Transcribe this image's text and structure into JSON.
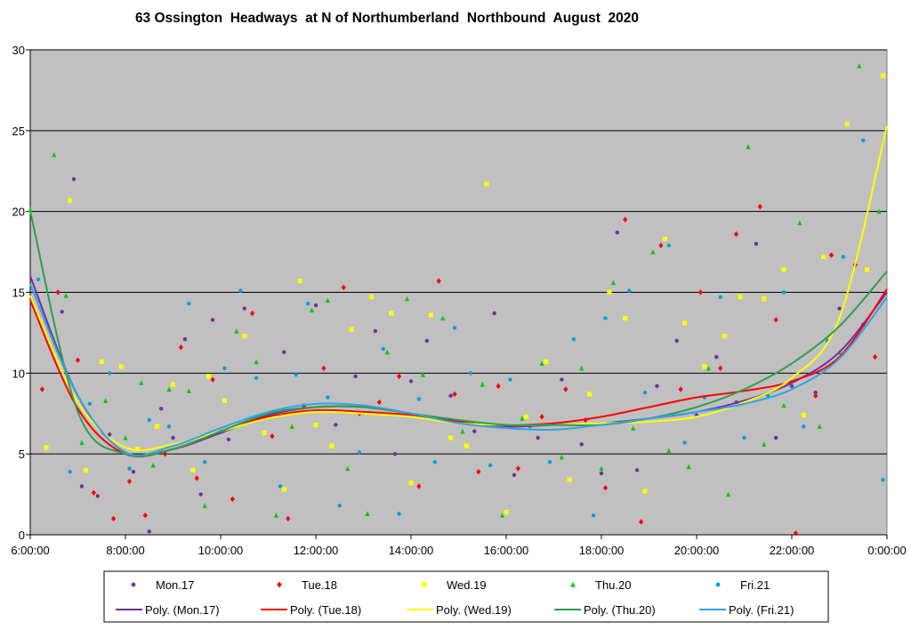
{
  "chart_data": {
    "type": "scatter",
    "title": "63 Ossington  Headways  at N of Northumberland  Northbound  August  2020",
    "xlabel": "",
    "ylabel": "",
    "xlim": [
      "6:00:00",
      "0:00:00"
    ],
    "ylim": [
      0,
      30
    ],
    "x_ticks": [
      "6:00:00",
      "8:00:00",
      "10:00:00",
      "12:00:00",
      "14:00:00",
      "16:00:00",
      "18:00:00",
      "20:00:00",
      "22:00:00",
      "0:00:00"
    ],
    "y_ticks": [
      "0",
      "5",
      "10",
      "15",
      "20",
      "25",
      "30"
    ],
    "grid": "horizontal",
    "plot_background": "#C0C0C0",
    "legend_position": "bottom",
    "series": [
      {
        "name": "Mon.17",
        "color": "#7030A0",
        "marker": "circle",
        "x": [
          "6:40",
          "6:55",
          "7:05",
          "7:25",
          "7:40",
          "8:10",
          "8:30",
          "8:45",
          "9:00",
          "9:15",
          "9:35",
          "9:50",
          "10:10",
          "10:30",
          "10:55",
          "11:20",
          "11:45",
          "12:00",
          "12:25",
          "12:50",
          "13:15",
          "13:40",
          "14:00",
          "14:20",
          "14:50",
          "15:20",
          "15:45",
          "16:10",
          "16:40",
          "17:10",
          "17:35",
          "18:00",
          "18:20",
          "18:45",
          "19:10",
          "19:35",
          "20:00",
          "20:25",
          "20:50",
          "21:15",
          "21:40",
          "22:00",
          "22:30",
          "23:00",
          "23:30"
        ],
        "y": [
          13.8,
          22.0,
          3.0,
          2.4,
          6.2,
          3.9,
          0.2,
          7.8,
          6.0,
          12.1,
          2.5,
          13.3,
          5.9,
          14.0,
          7.2,
          11.3,
          8.0,
          14.2,
          6.8,
          9.8,
          12.6,
          5.0,
          9.5,
          12.0,
          8.6,
          6.4,
          13.7,
          3.7,
          6.0,
          9.6,
          5.6,
          3.8,
          18.7,
          4.0,
          9.2,
          12.0,
          7.4,
          11.0,
          8.2,
          18.0,
          6.0,
          9.2,
          8.8,
          14.0,
          13.0
        ]
      },
      {
        "name": "Tue.18",
        "color": "#FF0000",
        "marker": "diamond",
        "x": [
          "6:15",
          "6:35",
          "7:00",
          "7:20",
          "7:45",
          "8:05",
          "8:25",
          "8:50",
          "9:10",
          "9:30",
          "9:50",
          "10:15",
          "10:40",
          "11:05",
          "11:25",
          "11:45",
          "12:10",
          "12:35",
          "12:55",
          "13:20",
          "13:45",
          "14:10",
          "14:35",
          "14:55",
          "15:25",
          "15:50",
          "16:15",
          "16:45",
          "17:15",
          "17:40",
          "18:05",
          "18:30",
          "18:50",
          "19:15",
          "19:40",
          "20:05",
          "20:30",
          "20:50",
          "21:20",
          "21:40",
          "22:05",
          "22:30",
          "22:50",
          "23:20",
          "23:45"
        ],
        "y": [
          9.0,
          15.0,
          10.8,
          2.6,
          1.0,
          3.3,
          1.2,
          5.0,
          11.6,
          3.5,
          9.6,
          2.2,
          13.7,
          6.1,
          1.0,
          7.9,
          10.3,
          15.3,
          7.5,
          8.2,
          9.8,
          3.0,
          15.7,
          8.7,
          3.9,
          9.2,
          4.1,
          7.3,
          9.0,
          7.1,
          2.9,
          19.5,
          0.8,
          17.9,
          9.0,
          15.0,
          10.3,
          18.6,
          20.3,
          13.3,
          0.1,
          8.6,
          17.3,
          16.7,
          11.0
        ]
      },
      {
        "name": "Wed.19",
        "color": "#FFFF00",
        "marker": "square",
        "x": [
          "6:20",
          "6:50",
          "7:10",
          "7:30",
          "7:55",
          "8:15",
          "8:40",
          "9:00",
          "9:25",
          "9:45",
          "10:05",
          "10:30",
          "10:55",
          "11:20",
          "11:40",
          "12:00",
          "12:20",
          "12:45",
          "13:10",
          "13:35",
          "14:00",
          "14:25",
          "14:50",
          "15:10",
          "15:35",
          "16:00",
          "16:25",
          "16:50",
          "17:20",
          "17:45",
          "18:10",
          "18:30",
          "18:55",
          "19:20",
          "19:45",
          "20:10",
          "20:35",
          "20:55",
          "21:25",
          "21:50",
          "22:15",
          "22:40",
          "23:10",
          "23:35",
          "23:55"
        ],
        "y": [
          5.4,
          20.7,
          4.0,
          10.7,
          10.4,
          5.3,
          6.7,
          9.3,
          4.0,
          9.8,
          8.3,
          12.3,
          6.3,
          2.8,
          15.7,
          6.8,
          5.5,
          12.7,
          14.7,
          13.7,
          3.2,
          13.6,
          6.0,
          5.5,
          21.7,
          1.4,
          7.3,
          10.7,
          3.4,
          8.7,
          15.0,
          13.4,
          2.7,
          18.3,
          13.1,
          10.4,
          12.3,
          14.7,
          14.6,
          16.4,
          7.4,
          17.2,
          25.4,
          16.4,
          28.4
        ]
      },
      {
        "name": "Thu.20",
        "color": "#00CC00",
        "marker": "triangle",
        "x": [
          "6:00",
          "6:30",
          "6:45",
          "7:05",
          "7:35",
          "8:00",
          "8:20",
          "8:35",
          "8:55",
          "9:20",
          "9:40",
          "10:00",
          "10:20",
          "10:45",
          "11:10",
          "11:30",
          "11:55",
          "12:15",
          "12:40",
          "13:05",
          "13:30",
          "13:55",
          "14:15",
          "14:40",
          "15:05",
          "15:30",
          "15:55",
          "16:20",
          "16:45",
          "17:10",
          "17:35",
          "18:00",
          "18:15",
          "18:40",
          "19:05",
          "19:25",
          "19:50",
          "20:15",
          "20:40",
          "21:05",
          "21:25",
          "21:50",
          "22:10",
          "22:35",
          "23:00",
          "23:25",
          "23:50"
        ],
        "y": [
          20.1,
          23.5,
          14.8,
          5.7,
          8.3,
          6.0,
          9.4,
          4.3,
          9.0,
          8.9,
          1.8,
          6.4,
          12.6,
          10.7,
          1.2,
          6.7,
          13.9,
          14.5,
          4.1,
          1.3,
          11.3,
          14.6,
          9.9,
          13.4,
          6.4,
          9.3,
          1.2,
          7.2,
          10.6,
          4.8,
          10.3,
          4.1,
          15.6,
          6.6,
          17.5,
          5.2,
          4.2,
          10.3,
          2.5,
          24.0,
          5.6,
          8.0,
          19.3,
          6.7,
          11.3,
          29.0,
          20.0
        ]
      },
      {
        "name": "Fri.21",
        "color": "#00A0E0",
        "marker": "circle",
        "x": [
          "6:10",
          "6:50",
          "7:15",
          "7:40",
          "8:05",
          "8:30",
          "8:55",
          "9:20",
          "9:40",
          "10:05",
          "10:25",
          "10:45",
          "11:15",
          "11:35",
          "11:50",
          "12:15",
          "12:30",
          "12:55",
          "13:25",
          "13:45",
          "14:10",
          "14:30",
          "14:55",
          "15:15",
          "15:40",
          "16:05",
          "16:30",
          "16:55",
          "17:25",
          "17:50",
          "18:05",
          "18:35",
          "18:55",
          "19:25",
          "19:45",
          "20:10",
          "20:30",
          "21:00",
          "21:30",
          "21:50",
          "22:15",
          "22:45",
          "23:05",
          "23:30",
          "23:55"
        ],
        "y": [
          15.8,
          3.9,
          8.1,
          10.0,
          4.1,
          7.1,
          6.7,
          14.3,
          4.5,
          10.3,
          15.1,
          9.7,
          3.0,
          9.9,
          14.3,
          8.5,
          1.8,
          5.1,
          11.5,
          1.3,
          8.4,
          4.5,
          12.8,
          10.0,
          4.3,
          9.6,
          6.7,
          4.5,
          12.1,
          1.2,
          13.4,
          15.1,
          8.8,
          17.9,
          5.7,
          8.5,
          14.7,
          6.0,
          8.6,
          15.0,
          6.7,
          12.0,
          17.2,
          24.4,
          3.4
        ]
      }
    ],
    "trendlines": [
      {
        "name": "Poly. (Mon.17)",
        "color": "#7030A0",
        "x": [
          "6:00",
          "7:00",
          "8:00",
          "9:00",
          "10:00",
          "11:00",
          "12:00",
          "13:00",
          "14:00",
          "15:00",
          "16:00",
          "17:00",
          "18:00",
          "19:00",
          "20:00",
          "21:00",
          "22:00",
          "23:00",
          "0:00"
        ],
        "y": [
          16.0,
          8.6,
          5.1,
          5.3,
          6.3,
          7.4,
          7.9,
          7.9,
          7.5,
          7.0,
          6.7,
          6.8,
          6.9,
          7.2,
          7.6,
          8.3,
          9.4,
          11.3,
          15.0
        ]
      },
      {
        "name": "Poly. (Tue.18)",
        "color": "#FF0000",
        "x": [
          "6:00",
          "7:00",
          "8:00",
          "9:00",
          "10:00",
          "11:00",
          "12:00",
          "13:00",
          "14:00",
          "15:00",
          "16:00",
          "17:00",
          "18:00",
          "19:00",
          "20:00",
          "21:00",
          "22:00",
          "23:00",
          "0:00"
        ],
        "y": [
          14.5,
          7.8,
          5.0,
          5.3,
          6.4,
          7.3,
          7.7,
          7.6,
          7.4,
          7.0,
          6.8,
          6.9,
          7.3,
          7.9,
          8.5,
          8.9,
          9.5,
          11.0,
          15.2
        ]
      },
      {
        "name": "Poly. (Wed.19)",
        "color": "#FFFF00",
        "x": [
          "6:00",
          "7:00",
          "8:00",
          "9:00",
          "10:00",
          "11:00",
          "12:00",
          "13:00",
          "14:00",
          "15:00",
          "16:00",
          "17:00",
          "18:00",
          "19:00",
          "20:00",
          "21:00",
          "22:00",
          "23:00",
          "0:00"
        ],
        "y": [
          14.8,
          8.2,
          5.4,
          5.6,
          6.4,
          7.2,
          7.6,
          7.5,
          7.3,
          6.9,
          6.8,
          6.8,
          6.9,
          7.0,
          7.3,
          8.2,
          9.7,
          13.4,
          25.3
        ]
      },
      {
        "name": "Poly. (Thu.20)",
        "color": "#2E9E4E",
        "x": [
          "6:00",
          "7:00",
          "8:00",
          "9:00",
          "10:00",
          "11:00",
          "12:00",
          "13:00",
          "14:00",
          "15:00",
          "16:00",
          "17:00",
          "18:00",
          "19:00",
          "20:00",
          "21:00",
          "22:00",
          "23:00",
          "0:00"
        ],
        "y": [
          20.0,
          7.6,
          5.0,
          5.3,
          6.4,
          7.5,
          7.9,
          7.9,
          7.5,
          7.1,
          6.8,
          6.8,
          6.8,
          7.2,
          7.9,
          9.0,
          10.6,
          12.9,
          16.3
        ]
      },
      {
        "name": "Poly. (Fri.21)",
        "color": "#2FA4E8",
        "x": [
          "6:00",
          "7:00",
          "8:00",
          "9:00",
          "10:00",
          "11:00",
          "12:00",
          "13:00",
          "14:00",
          "15:00",
          "16:00",
          "17:00",
          "18:00",
          "19:00",
          "20:00",
          "21:00",
          "22:00",
          "23:00",
          "0:00"
        ],
        "y": [
          15.5,
          8.6,
          5.1,
          5.5,
          6.6,
          7.6,
          8.1,
          8.0,
          7.5,
          6.9,
          6.6,
          6.5,
          6.8,
          7.2,
          7.6,
          8.1,
          9.0,
          10.9,
          14.7
        ]
      }
    ]
  }
}
